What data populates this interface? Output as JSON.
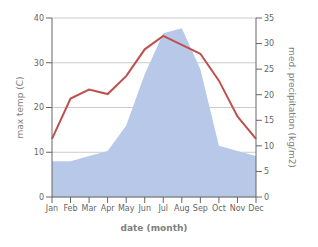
{
  "chart_data": {
    "type": "line",
    "xlabel": "date (month)",
    "ylabel": "max temp (C)",
    "y2label": "med. precipitation (kg/m2)",
    "categories": [
      "Jan",
      "Feb",
      "Mar",
      "Apr",
      "May",
      "Jun",
      "Jul",
      "Aug",
      "Sep",
      "Oct",
      "Nov",
      "Dec"
    ],
    "series": [
      {
        "type": "area",
        "axis": "y2",
        "color": "#b8c8e8",
        "values": [
          7,
          7,
          8,
          9,
          14,
          24,
          32,
          33,
          25,
          10,
          9,
          8
        ]
      },
      {
        "type": "line",
        "axis": "y",
        "color": "#c0504d",
        "values": [
          13,
          22,
          24,
          23,
          27,
          33,
          36,
          34,
          32,
          26,
          18,
          13
        ]
      }
    ],
    "ylim": [
      0,
      40
    ],
    "yticks": [
      0,
      10,
      20,
      30,
      40
    ],
    "y2lim": [
      0,
      35
    ],
    "y2ticks": [
      0,
      5,
      10,
      15,
      20,
      25,
      30,
      35
    ],
    "grid": true
  }
}
